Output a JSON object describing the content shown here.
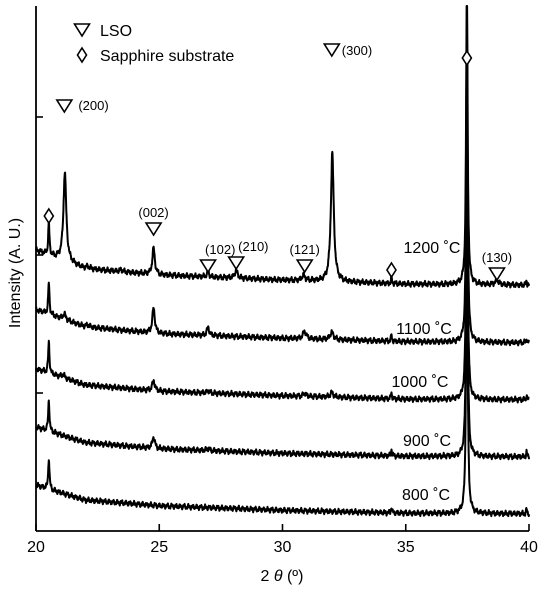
{
  "chart_data": {
    "type": "line",
    "title": "",
    "xlabel": "2 θ (º)",
    "xlabel_parts": {
      "prefix": "2 ",
      "symbol": "θ",
      "suffix": " (º)"
    },
    "ylabel": "Intensity (A. U.)",
    "xlim": [
      20,
      40
    ],
    "xticks": [
      20,
      25,
      30,
      35,
      40
    ],
    "xtick_labels": [
      "20",
      "25",
      "30",
      "35",
      "40"
    ],
    "grid": false,
    "legend_position": "top-left",
    "legend": [
      {
        "marker": "triangle-down",
        "label": "LSO"
      },
      {
        "marker": "diamond",
        "label": "Sapphire substrate"
      }
    ],
    "series": [
      {
        "name": "1200 ˚C",
        "offset": 4,
        "background": [
          [
            20,
            0.66
          ],
          [
            22,
            0.34
          ],
          [
            25,
            0.23
          ],
          [
            30,
            0.14
          ],
          [
            35,
            0.07
          ],
          [
            40,
            0.05
          ]
        ],
        "peaks": [
          {
            "x": 20.52,
            "h": 0.55,
            "w": 0.03
          },
          {
            "x": 21.17,
            "h": 1.55,
            "w": 0.07
          },
          {
            "x": 22.1,
            "h": 0.04,
            "w": 0.08
          },
          {
            "x": 23.45,
            "h": 0.03,
            "w": 0.08
          },
          {
            "x": 24.77,
            "h": 0.46,
            "w": 0.06
          },
          {
            "x": 26.98,
            "h": 0.08,
            "w": 0.06
          },
          {
            "x": 28.12,
            "h": 0.13,
            "w": 0.07
          },
          {
            "x": 30.85,
            "h": 0.09,
            "w": 0.08
          },
          {
            "x": 32.02,
            "h": 2.26,
            "w": 0.07
          },
          {
            "x": 34.42,
            "h": 0.12,
            "w": 0.02
          },
          {
            "x": 37.48,
            "h": 5.5,
            "w": 0.035
          },
          {
            "x": 38.7,
            "h": 0.08,
            "w": 0.09
          },
          {
            "x": 39.9,
            "h": 0.08,
            "w": 0.02
          }
        ]
      },
      {
        "name": "1100 ˚C",
        "offset": 3,
        "background": [
          [
            20,
            0.62
          ],
          [
            22,
            0.32
          ],
          [
            25,
            0.2
          ],
          [
            30,
            0.12
          ],
          [
            35,
            0.06
          ],
          [
            40,
            0.04
          ]
        ],
        "peaks": [
          {
            "x": 20.52,
            "h": 0.55,
            "w": 0.03
          },
          {
            "x": 21.15,
            "h": 0.1,
            "w": 0.07
          },
          {
            "x": 22.1,
            "h": 0.04,
            "w": 0.08
          },
          {
            "x": 24.77,
            "h": 0.44,
            "w": 0.06
          },
          {
            "x": 26.98,
            "h": 0.14,
            "w": 0.06
          },
          {
            "x": 30.9,
            "h": 0.13,
            "w": 0.08
          },
          {
            "x": 32.0,
            "h": 0.13,
            "w": 0.08
          },
          {
            "x": 34.42,
            "h": 0.12,
            "w": 0.02
          },
          {
            "x": 37.48,
            "h": 5.5,
            "w": 0.035
          },
          {
            "x": 39.9,
            "h": 0.08,
            "w": 0.02
          }
        ]
      },
      {
        "name": "1000 ˚C",
        "offset": 2,
        "background": [
          [
            20,
            0.58
          ],
          [
            22,
            0.3
          ],
          [
            25,
            0.19
          ],
          [
            30,
            0.11
          ],
          [
            35,
            0.05
          ],
          [
            40,
            0.04
          ]
        ],
        "peaks": [
          {
            "x": 20.52,
            "h": 0.55,
            "w": 0.03
          },
          {
            "x": 21.1,
            "h": 0.06,
            "w": 0.07
          },
          {
            "x": 24.77,
            "h": 0.18,
            "w": 0.06
          },
          {
            "x": 26.98,
            "h": 0.04,
            "w": 0.06
          },
          {
            "x": 30.9,
            "h": 0.05,
            "w": 0.08
          },
          {
            "x": 32.0,
            "h": 0.08,
            "w": 0.08
          },
          {
            "x": 34.42,
            "h": 0.12,
            "w": 0.02
          },
          {
            "x": 37.48,
            "h": 5.5,
            "w": 0.035
          },
          {
            "x": 39.9,
            "h": 0.08,
            "w": 0.02
          }
        ]
      },
      {
        "name": "900 ˚C",
        "offset": 1,
        "background": [
          [
            20,
            0.56
          ],
          [
            22,
            0.29
          ],
          [
            25,
            0.18
          ],
          [
            30,
            0.1
          ],
          [
            35,
            0.05
          ],
          [
            40,
            0.04
          ]
        ],
        "peaks": [
          {
            "x": 20.52,
            "h": 0.55,
            "w": 0.03
          },
          {
            "x": 24.77,
            "h": 0.2,
            "w": 0.06
          },
          {
            "x": 26.98,
            "h": 0.04,
            "w": 0.06
          },
          {
            "x": 34.42,
            "h": 0.12,
            "w": 0.02
          },
          {
            "x": 37.48,
            "h": 5.5,
            "w": 0.035
          },
          {
            "x": 39.9,
            "h": 0.08,
            "w": 0.02
          }
        ]
      },
      {
        "name": "800 ˚C",
        "offset": 0,
        "background": [
          [
            20,
            0.54
          ],
          [
            22,
            0.28
          ],
          [
            25,
            0.18
          ],
          [
            30,
            0.1
          ],
          [
            35,
            0.05
          ],
          [
            40,
            0.04
          ]
        ],
        "peaks": [
          {
            "x": 20.52,
            "h": 0.55,
            "w": 0.03
          },
          {
            "x": 34.42,
            "h": 0.1,
            "w": 0.02
          },
          {
            "x": 37.48,
            "h": 5.5,
            "w": 0.035
          },
          {
            "x": 39.9,
            "h": 0.08,
            "w": 0.02
          }
        ]
      }
    ],
    "annotations": [
      {
        "marker": "triangle-down",
        "x": 21.15,
        "label": "(200)"
      },
      {
        "marker": "triangle-down",
        "x": 24.77,
        "label": "(002)"
      },
      {
        "marker": "triangle-down",
        "x": 26.98,
        "label": "(102)"
      },
      {
        "marker": "triangle-down",
        "x": 28.12,
        "label": "(210)"
      },
      {
        "marker": "triangle-down",
        "x": 30.9,
        "label": "(121)"
      },
      {
        "marker": "triangle-down",
        "x": 32.0,
        "label": "(300)"
      },
      {
        "marker": "triangle-down",
        "x": 38.7,
        "label": "(130)"
      },
      {
        "marker": "diamond",
        "x": 20.52,
        "label": ""
      },
      {
        "marker": "diamond",
        "x": 34.42,
        "label": ""
      },
      {
        "marker": "diamond",
        "x": 37.48,
        "label": ""
      }
    ]
  }
}
